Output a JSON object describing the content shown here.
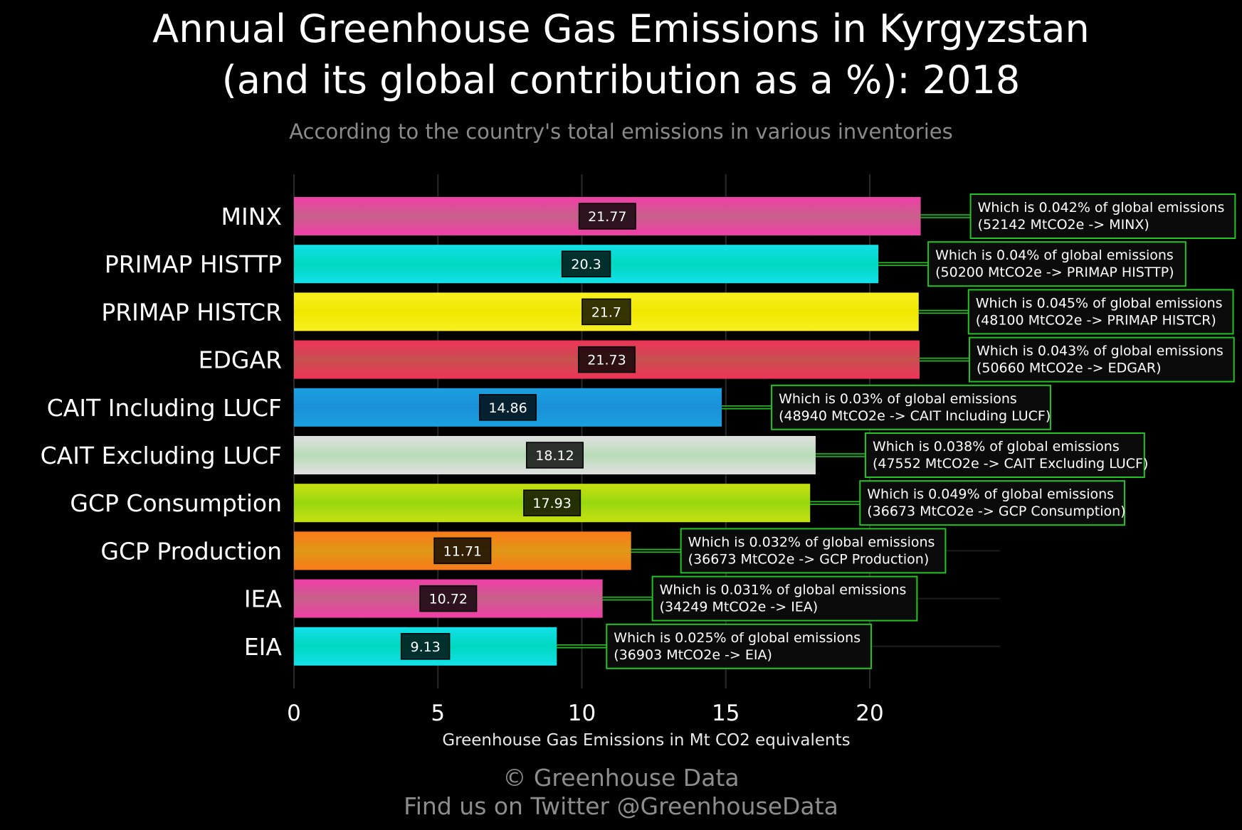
{
  "title_line1": "Annual Greenhouse Gas Emissions in Kyrgyzstan",
  "title_line2": "(and its global contribution as a %): 2018",
  "subtitle": "According to the country's total emissions in various inventories",
  "credit_line1": "© Greenhouse Data",
  "credit_line2": "Find us on Twitter @GreenhouseData",
  "chart_data": {
    "type": "bar",
    "orientation": "horizontal",
    "xlabel": "Greenhouse Gas Emissions in Mt CO2 equivalents",
    "xlim": [
      0,
      24.5
    ],
    "xticks": [
      0,
      5,
      10,
      15,
      20
    ],
    "grid": true,
    "categories": [
      "MINX",
      "PRIMAP HISTTP",
      "PRIMAP HISTCR",
      "EDGAR",
      "CAIT Including LUCF",
      "CAIT Excluding LUCF",
      "GCP Consumption",
      "GCP Production",
      "IEA",
      "EIA"
    ],
    "values": [
      21.77,
      20.3,
      21.7,
      21.73,
      14.86,
      18.12,
      17.93,
      11.71,
      10.72,
      9.13
    ],
    "value_labels": [
      "21.77",
      "20.3",
      "21.7",
      "21.73",
      "14.86",
      "18.12",
      "17.93",
      "11.71",
      "10.72",
      "9.13"
    ],
    "colors": [
      [
        "#f03ea8",
        "#c8608a"
      ],
      [
        "#12e0e8",
        "#00d8c0"
      ],
      [
        "#f8f020",
        "#f0e800"
      ],
      [
        "#ee3358",
        "#c85050"
      ],
      [
        "#1aa0e0",
        "#1a90d8"
      ],
      [
        "#e0e0e0",
        "#b8dcb8"
      ],
      [
        "#c8e010",
        "#98d810"
      ],
      [
        "#fa7a18",
        "#e09818"
      ],
      [
        "#f03ea8",
        "#c8608a"
      ],
      [
        "#12e0e8",
        "#00d8c0"
      ]
    ],
    "annotations": [
      [
        "Which is 0.042% of global emissions",
        "(52142 MtCO2e -> MINX)"
      ],
      [
        "Which is 0.04% of global emissions",
        "(50200 MtCO2e -> PRIMAP HISTTP)"
      ],
      [
        "Which is 0.045% of global emissions",
        "(48100 MtCO2e -> PRIMAP HISTCR)"
      ],
      [
        "Which is 0.043% of global emissions",
        "(50660 MtCO2e -> EDGAR)"
      ],
      [
        "Which is 0.03% of global emissions",
        "(48940 MtCO2e -> CAIT Including LUCF)"
      ],
      [
        "Which is 0.038% of global emissions",
        "(47552 MtCO2e -> CAIT Excluding LUCF)"
      ],
      [
        "Which is 0.049% of global emissions",
        "(36673 MtCO2e -> GCP Consumption)"
      ],
      [
        "Which is 0.032% of global emissions",
        "(36673 MtCO2e -> GCP Production)"
      ],
      [
        "Which is 0.031% of global emissions",
        "(34249 MtCO2e -> IEA)"
      ],
      [
        "Which is 0.025% of global emissions",
        "(36903 MtCO2e -> EIA)"
      ]
    ],
    "annotation_border_color": "#22c322"
  }
}
